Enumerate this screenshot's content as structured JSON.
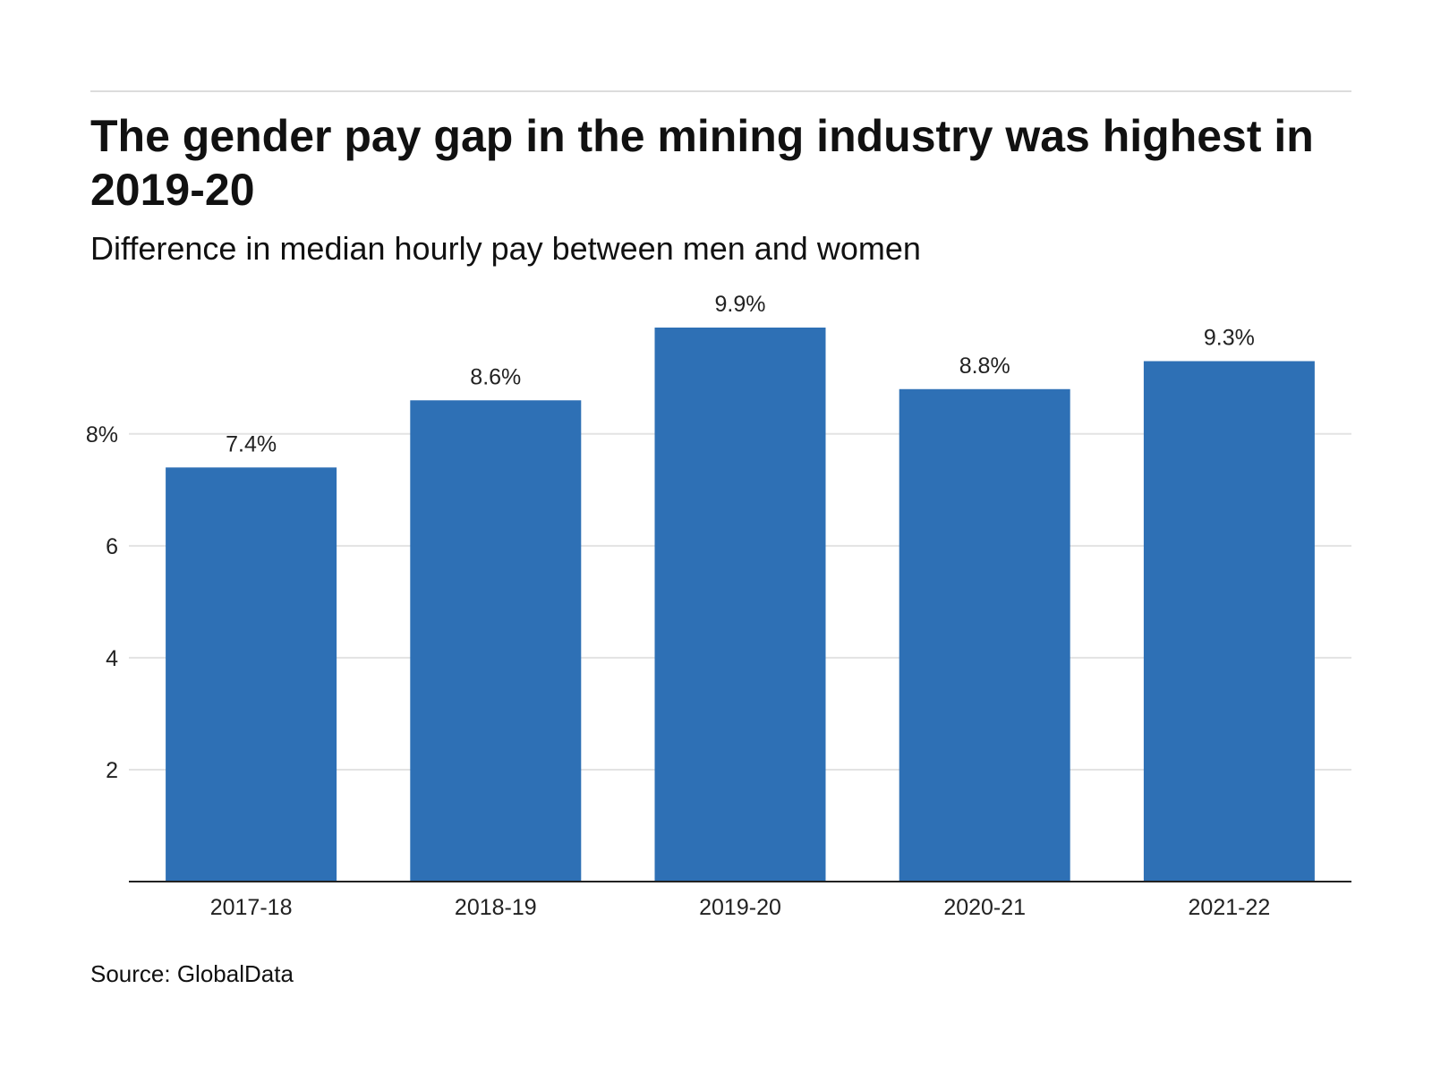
{
  "header": {
    "title": "The gender pay gap in the mining industry was highest in 2019-20",
    "subtitle": "Difference in median hourly pay between men and women"
  },
  "footer": {
    "source": "Source: GlobalData"
  },
  "colors": {
    "bar": "#2e70b5",
    "grid": "#e3e3e3",
    "axis": "#222222",
    "rule": "#dcdcdc"
  },
  "chart_data": {
    "type": "bar",
    "categories": [
      "2017-18",
      "2018-19",
      "2019-20",
      "2020-21",
      "2021-22"
    ],
    "values": [
      7.4,
      8.6,
      9.9,
      8.8,
      9.3
    ],
    "data_labels": [
      "7.4%",
      "8.6%",
      "9.9%",
      "8.8%",
      "9.3%"
    ],
    "yticks": [
      {
        "value": 2,
        "label": "2"
      },
      {
        "value": 4,
        "label": "4"
      },
      {
        "value": 6,
        "label": "6"
      },
      {
        "value": 8,
        "label": "8%"
      }
    ],
    "ylim": [
      0,
      9.9
    ],
    "grid": true,
    "legend": "none",
    "title": "The gender pay gap in the mining industry was highest in 2019-20",
    "subtitle": "Difference in median hourly pay between men and women",
    "xlabel": "",
    "ylabel": ""
  }
}
